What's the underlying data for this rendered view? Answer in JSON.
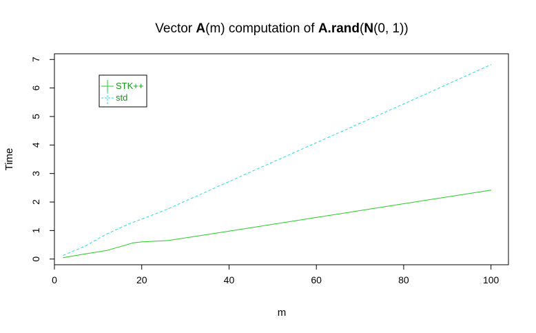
{
  "chart_data": {
    "type": "line",
    "title": {
      "parts": [
        {
          "text": "Vector ",
          "bold": false
        },
        {
          "text": "A",
          "bold": true
        },
        {
          "text": "(m) computation of ",
          "bold": false
        },
        {
          "text": "A.rand",
          "bold": true
        },
        {
          "text": "(",
          "bold": false
        },
        {
          "text": "N",
          "bold": true
        },
        {
          "text": "(0, 1))",
          "bold": false
        }
      ]
    },
    "xlabel": "m",
    "ylabel": "Time",
    "xlim": [
      0,
      104
    ],
    "ylim": [
      -0.2,
      7.2
    ],
    "xticks": [
      0,
      20,
      40,
      60,
      80,
      100
    ],
    "yticks": [
      0,
      1,
      2,
      3,
      4,
      5,
      6,
      7
    ],
    "legend": {
      "position": "top-left"
    },
    "series": [
      {
        "name": "STK++",
        "color": "#22cc22",
        "dash": "solid",
        "x": [
          2,
          7,
          12,
          17,
          18,
          20,
          26,
          40,
          60,
          80,
          100
        ],
        "y": [
          0.05,
          0.18,
          0.3,
          0.52,
          0.57,
          0.6,
          0.65,
          0.98,
          1.46,
          1.94,
          2.42
        ]
      },
      {
        "name": "std",
        "color": "#22dddd",
        "dash": "dashed",
        "x": [
          2,
          7,
          12,
          17,
          20,
          26,
          40,
          60,
          80,
          100
        ],
        "y": [
          0.13,
          0.45,
          0.88,
          1.23,
          1.4,
          1.76,
          2.72,
          4.08,
          5.44,
          6.82
        ]
      }
    ]
  }
}
